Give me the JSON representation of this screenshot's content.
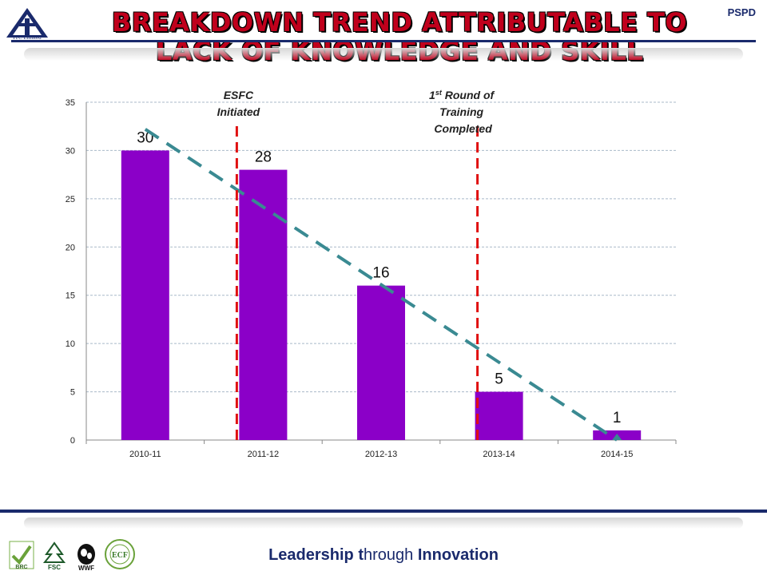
{
  "header": {
    "tag": "PSPD",
    "logo_caption": "ITC Limited",
    "title_line_1": "Breakdown Trend Attributable to",
    "title_line_2": "Lack of Knowledge  and Skill"
  },
  "footer": {
    "tagline_lead": "Leadership t",
    "tagline_mid": "hrough",
    "tagline_tail": " Innovation",
    "logos": [
      "brc-icon",
      "fsc-icon",
      "wwf-icon",
      "ecf-icon"
    ]
  },
  "colors": {
    "bar": "#8B00C8",
    "trendline": "#3a8a92",
    "marker_line": "#e01010",
    "grid": "#a9b9c9",
    "brand_navy": "#1a2a6c",
    "title_red": "#c0001c"
  },
  "chart_data": {
    "type": "bar",
    "categories": [
      "2010-11",
      "2011-12",
      "2012-13",
      "2013-14",
      "2014-15"
    ],
    "values": [
      30,
      28,
      16,
      5,
      1
    ],
    "data_labels": [
      "30",
      "28",
      "16",
      "5",
      "1"
    ],
    "ylim": [
      0,
      35
    ],
    "yticks": [
      0,
      5,
      10,
      15,
      20,
      25,
      30,
      35
    ],
    "grid": true,
    "trendline": {
      "type": "linear",
      "style": "dashed"
    },
    "annotations": [
      {
        "lines": [
          "ESFC",
          "Initiated"
        ],
        "sup": ""
      },
      {
        "lines": [
          "1",
          " Round of",
          "Training",
          "Completed"
        ],
        "sup": "st"
      }
    ]
  }
}
